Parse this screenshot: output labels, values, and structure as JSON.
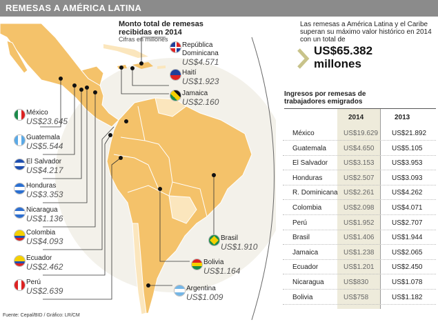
{
  "header": {
    "title": "REMESAS A AMÉRICA LATINA"
  },
  "map_panel": {
    "title": "Monto total de remesas recibidas en 2014",
    "subtitle": "Cifras en millones"
  },
  "map_labels": [
    {
      "country": "México",
      "amount": "US$23.645",
      "flag": "mexico-flag-icon"
    },
    {
      "country": "Guatemala",
      "amount": "US$5.544",
      "flag": "guatemala-flag-icon"
    },
    {
      "country": "El Salvador",
      "amount": "US$4.217",
      "flag": "el-salvador-flag-icon"
    },
    {
      "country": "Honduras",
      "amount": "US$3.353",
      "flag": "honduras-flag-icon"
    },
    {
      "country": "Nicaragua",
      "amount": "US$1.136",
      "flag": "nicaragua-flag-icon"
    },
    {
      "country": "Colombia",
      "amount": "US$4.093",
      "flag": "colombia-flag-icon"
    },
    {
      "country": "Ecuador",
      "amount": "US$2.462",
      "flag": "ecuador-flag-icon"
    },
    {
      "country": "Perú",
      "amount": "US$2.639",
      "flag": "peru-flag-icon"
    },
    {
      "country": "República Dominicana",
      "amount": "US$4.571",
      "flag": "dominican-republic-flag-icon"
    },
    {
      "country": "Haití",
      "amount": "US$1.923",
      "flag": "haiti-flag-icon"
    },
    {
      "country": "Jamaica",
      "amount": "US$2.160",
      "flag": "jamaica-flag-icon"
    },
    {
      "country": "Brasil",
      "amount": "US$1.910",
      "flag": "brazil-flag-icon"
    },
    {
      "country": "Bolivia",
      "amount": "US$1.164",
      "flag": "bolivia-flag-icon"
    },
    {
      "country": "Argentina",
      "amount": "US$1.009",
      "flag": "argentina-flag-icon"
    }
  ],
  "callout": {
    "text": "Las remesas a América Latina y el Caribe superan su máximo valor histórico en 2014 con un total de",
    "value": "US$65.382",
    "unit": "millones"
  },
  "table": {
    "title": "Ingresos por remesas de trabajadores emigrados",
    "columns": [
      "2014",
      "2013"
    ],
    "rows": [
      {
        "country": "México",
        "v2014": "US$19.629",
        "v2013": "US$21.892"
      },
      {
        "country": "Guatemala",
        "v2014": "US$4.650",
        "v2013": "US$5.105"
      },
      {
        "country": "El Salvador",
        "v2014": "US$3.153",
        "v2013": "US$3.953"
      },
      {
        "country": "Honduras",
        "v2014": "US$2.507",
        "v2013": "US$3.093"
      },
      {
        "country": "R. Dominicana",
        "v2014": "US$2.261",
        "v2013": "US$4.262"
      },
      {
        "country": "Colombia",
        "v2014": "US$2.098",
        "v2013": "US$4.071"
      },
      {
        "country": "Perú",
        "v2014": "US$1.952",
        "v2013": "US$2.707"
      },
      {
        "country": "Brasil",
        "v2014": "US$1.406",
        "v2013": "US$1.944"
      },
      {
        "country": "Jamaica",
        "v2014": "US$1.238",
        "v2013": "US$2.065"
      },
      {
        "country": "Ecuador",
        "v2014": "US$1.201",
        "v2013": "US$2.450"
      },
      {
        "country": "Nicaragua",
        "v2014": "US$830",
        "v2013": "US$1.078"
      },
      {
        "country": "Bolivia",
        "v2014": "US$758",
        "v2013": "US$1.182"
      }
    ]
  },
  "source": "Fuente: Cepal/BID / Gráfico: LR/CM",
  "colors": {
    "land": "#f4c26a",
    "land_light": "#fbe6bd",
    "header_bg": "#8b8b8b",
    "highlight_col": "#eeebdb"
  }
}
